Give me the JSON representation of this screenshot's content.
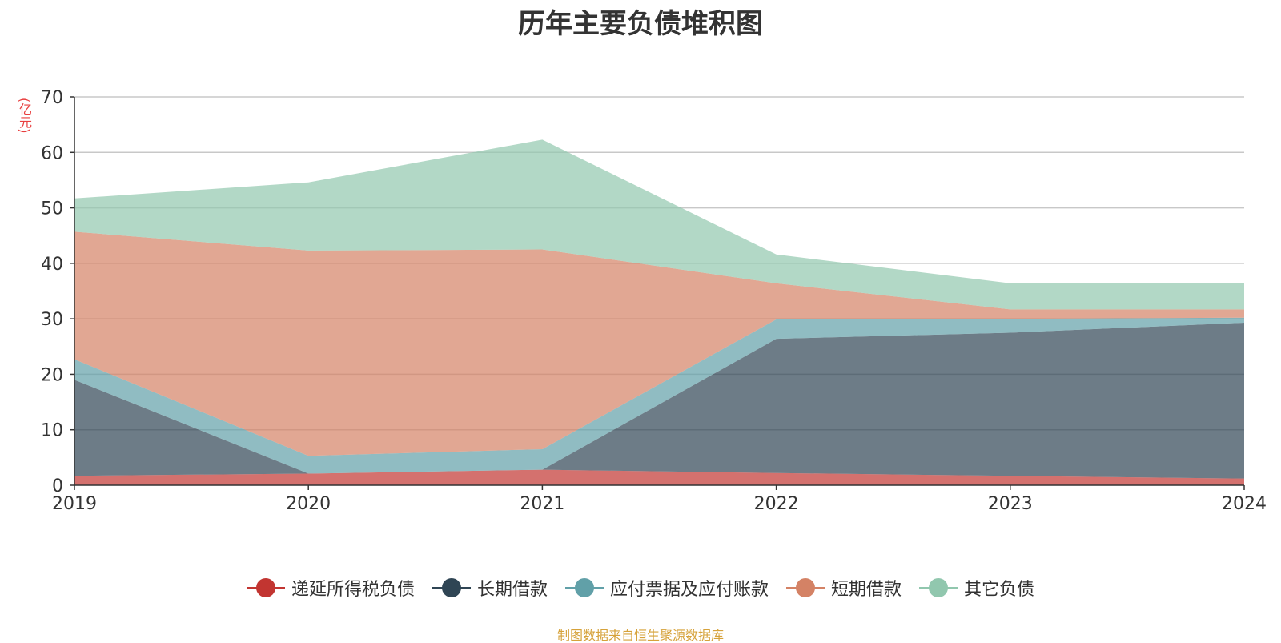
{
  "chart_data": {
    "type": "area",
    "title": "历年主要负债堆积图",
    "unit_label": "(亿元)",
    "x": [
      "2019",
      "2020",
      "2021",
      "2022",
      "2023",
      "2024"
    ],
    "ylim": [
      0,
      70
    ],
    "yticks": [
      0,
      10,
      20,
      30,
      40,
      50,
      60,
      70
    ],
    "grid": true,
    "stacked": true,
    "legend_position": "bottom",
    "series": [
      {
        "name": "递延所得税负债",
        "color": "#c23531",
        "values": [
          1.7,
          2.1,
          2.8,
          2.2,
          1.7,
          1.2
        ]
      },
      {
        "name": "长期借款",
        "color": "#2f4554",
        "values": [
          17.3,
          0.0,
          0.0,
          24.2,
          25.8,
          28.1
        ]
      },
      {
        "name": "应付票据及应付账款",
        "color": "#61a0a8",
        "values": [
          3.7,
          3.2,
          3.7,
          3.5,
          2.5,
          0.9
        ]
      },
      {
        "name": "短期借款",
        "color": "#d48265",
        "values": [
          23.0,
          37.0,
          36.0,
          6.5,
          1.7,
          1.5
        ]
      },
      {
        "name": "其它负债",
        "color": "#91c7ae",
        "values": [
          6.0,
          12.3,
          19.8,
          5.2,
          4.7,
          4.8
        ]
      }
    ],
    "source_note": "制图数据来自恒生聚源数据库",
    "source_note_color": "#d6a23a",
    "unit_label_color": "#e83e3e"
  }
}
